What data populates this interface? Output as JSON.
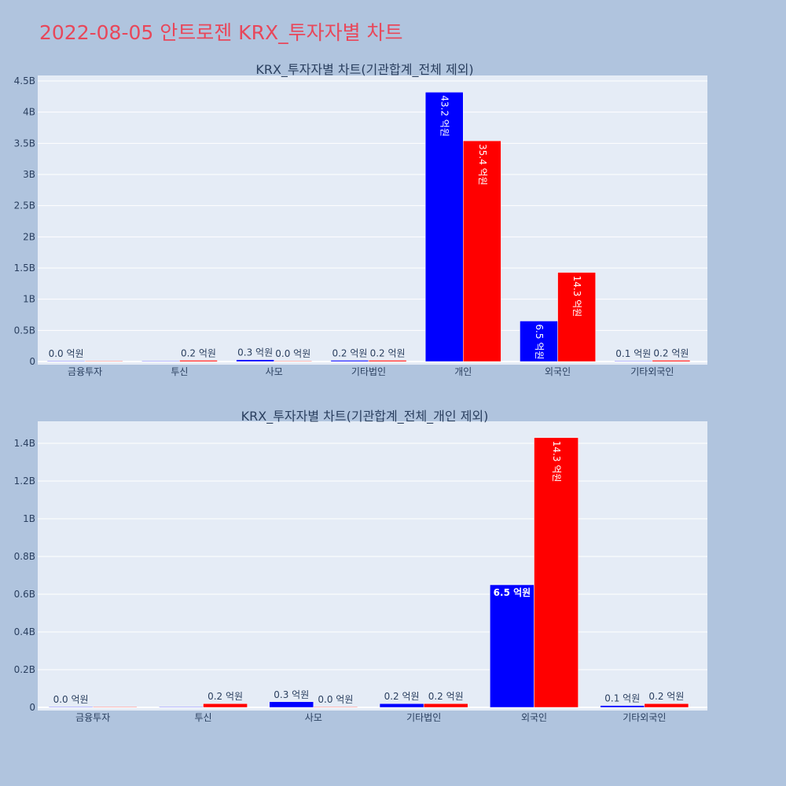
{
  "page": {
    "title": "2022-08-05 안트로젠 KRX_투자자별 차트"
  },
  "colors": {
    "background": "#b0c4de",
    "plot_bg": "#e5ecf6",
    "title": "#e8475a",
    "series_a": "#0000ff",
    "series_b": "#ff0000",
    "axis_text": "#2a3f5f"
  },
  "chart_data": [
    {
      "type": "bar",
      "title": "KRX_투자자별 차트(기관합계_전체 제외)",
      "categories": [
        "금융투자",
        "투신",
        "사모",
        "기타법인",
        "개인",
        "외국인",
        "기타외국인"
      ],
      "series": [
        {
          "color": "#0000ff",
          "values": [
            0,
            0,
            30000000,
            20000000,
            4320000000,
            650000000,
            10000000
          ],
          "labels": [
            "0.0 억원",
            "",
            "0.3 억원",
            "0.2 억원",
            "43.2 억원",
            "6.5 억원",
            "0.1 억원"
          ]
        },
        {
          "color": "#ff0000",
          "values": [
            0,
            20000000,
            0,
            20000000,
            3540000000,
            1430000000,
            20000000
          ],
          "labels": [
            "",
            "0.2 억원",
            "0.0 억원",
            "0.2 억원",
            "35.4 억원",
            "14.3 억원",
            "0.2 억원"
          ]
        }
      ],
      "ylim": [
        0,
        4500000000
      ],
      "yticks": [
        0,
        500000000,
        1000000000,
        1500000000,
        2000000000,
        2500000000,
        3000000000,
        3500000000,
        4000000000,
        4500000000
      ],
      "yticklabels": [
        "0",
        "0.5B",
        "1B",
        "1.5B",
        "2B",
        "2.5B",
        "3B",
        "3.5B",
        "4B",
        "4.5B"
      ],
      "grid": true
    },
    {
      "type": "bar",
      "title": "KRX_투자자별 차트(기관합계_전체_개인 제외)",
      "categories": [
        "금융투자",
        "투신",
        "사모",
        "기타법인",
        "외국인",
        "기타외국인"
      ],
      "series": [
        {
          "color": "#0000ff",
          "values": [
            0,
            0,
            30000000,
            20000000,
            650000000,
            10000000
          ],
          "labels": [
            "0.0 억원",
            "",
            "0.3 억원",
            "0.2 억원",
            "6.5 억원",
            "0.1 억원"
          ]
        },
        {
          "color": "#ff0000",
          "values": [
            0,
            20000000,
            0,
            20000000,
            1430000000,
            20000000
          ],
          "labels": [
            "",
            "0.2 억원",
            "0.0 억원",
            "0.2 억원",
            "14.3 억원",
            "0.2 억원"
          ]
        }
      ],
      "ylim": [
        0,
        1500000000
      ],
      "yticks": [
        0,
        200000000,
        400000000,
        600000000,
        800000000,
        1000000000,
        1200000000,
        1400000000
      ],
      "yticklabels": [
        "0",
        "0.2B",
        "0.4B",
        "0.6B",
        "0.8B",
        "1B",
        "1.2B",
        "1.4B"
      ],
      "grid": true
    }
  ]
}
